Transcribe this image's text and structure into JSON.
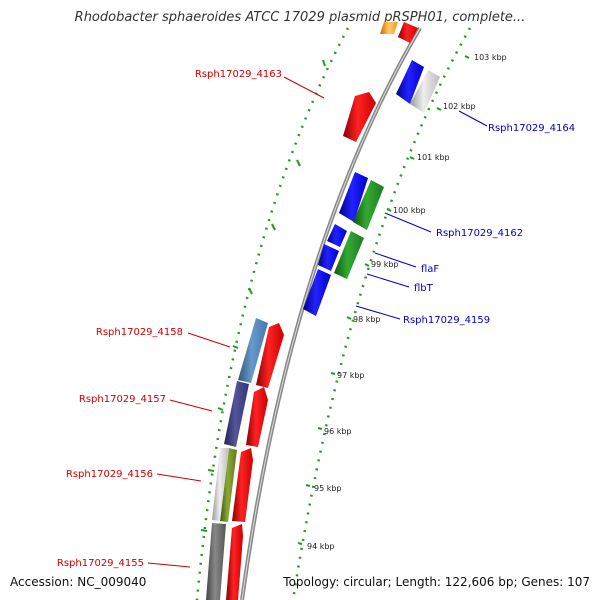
{
  "title": "Rhodobacter sphaeroides ATCC 17029 plasmid pRSPH01, complete...",
  "footer": {
    "accession": "Accession: NC_009040",
    "stats": "Topology: circular; Length: 122,606 bp; Genes: 107"
  },
  "scale_labels": [
    "103 kbp",
    "102 kbp",
    "101 kbp",
    "100 kbp",
    "99 kbp",
    "98 kbp",
    "97 kbp",
    "96 kbp",
    "95 kbp",
    "94 kbp"
  ],
  "gene_labels_left": [
    "Rsph17029_4163",
    "Rsph17029_4158",
    "Rsph17029_4157",
    "Rsph17029_4156",
    "Rsph17029_4155"
  ],
  "gene_labels_right": [
    "Rsph17029_4164",
    "Rsph17029_4162",
    "flaF",
    "flbT",
    "Rsph17029_4159"
  ],
  "colors": {
    "forward_cds": "#ee1111",
    "reverse_cds": "#1111ee",
    "label_forward": "#cc0000",
    "label_reverse": "#0000cc",
    "backbone": "#888888",
    "gc_dots": "#229922",
    "gc_skew": "#ff9900"
  }
}
